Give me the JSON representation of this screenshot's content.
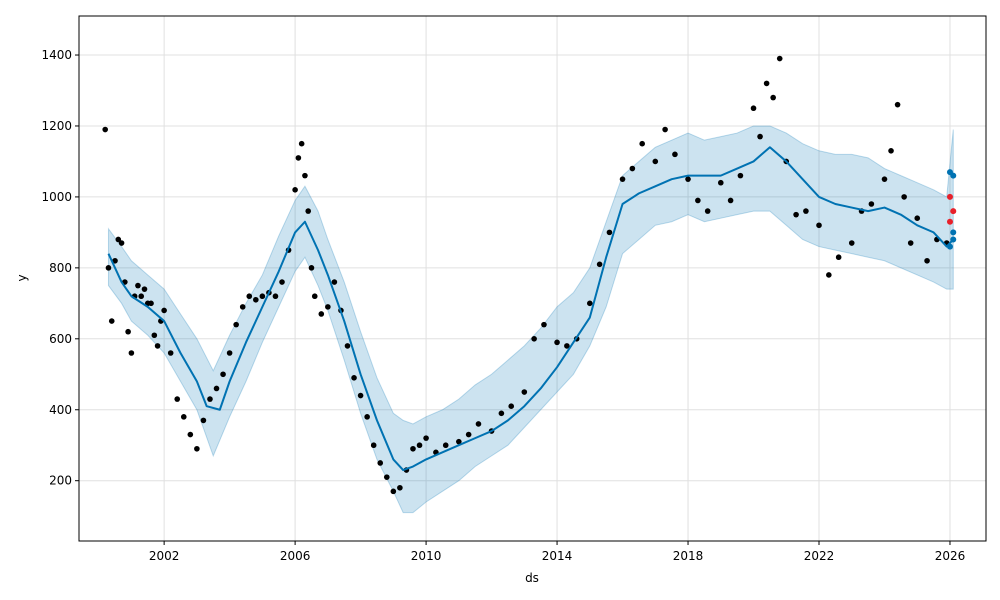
{
  "chart_data": {
    "type": "scatter",
    "title": "",
    "xlabel": "ds",
    "ylabel": "y",
    "xlim": [
      1999.4,
      2027.1
    ],
    "ylim": [
      30,
      1510
    ],
    "x_ticks": [
      2002,
      2006,
      2010,
      2014,
      2018,
      2022,
      2026
    ],
    "x_tick_labels": [
      "2002",
      "2006",
      "2010",
      "2014",
      "2018",
      "2022",
      "2026"
    ],
    "y_ticks": [
      200,
      400,
      600,
      800,
      1000,
      1200,
      1400
    ],
    "y_tick_labels": [
      "200",
      "400",
      "600",
      "800",
      "1000",
      "1200",
      "1400"
    ],
    "grid": true,
    "colors": {
      "observed": "#000000",
      "forecast": "#0072B2",
      "uncertainty": "#0072B2",
      "highlight": "#e8202a"
    },
    "series": [
      {
        "type": "band",
        "x": [
          2000.3,
          2000.7,
          2001.0,
          2001.5,
          2002.0,
          2002.5,
          2003.0,
          2003.5,
          2004.0,
          2004.5,
          2005.0,
          2005.5,
          2006.0,
          2006.3,
          2006.7,
          2007.0,
          2007.5,
          2008.0,
          2008.5,
          2009.0,
          2009.3,
          2009.6,
          2010.0,
          2010.5,
          2011.0,
          2011.5,
          2012.0,
          2012.5,
          2013.0,
          2013.5,
          2014.0,
          2014.5,
          2015.0,
          2015.5,
          2016.0,
          2016.5,
          2017.0,
          2017.5,
          2018.0,
          2018.5,
          2019.0,
          2019.5,
          2020.0,
          2020.5,
          2021.0,
          2021.5,
          2022.0,
          2022.5,
          2023.0,
          2023.5,
          2024.0,
          2024.5,
          2025.0,
          2025.5,
          2025.9,
          2026.1
        ],
        "upper": [
          910,
          860,
          820,
          780,
          740,
          670,
          600,
          510,
          610,
          700,
          780,
          890,
          990,
          1030,
          960,
          880,
          760,
          620,
          490,
          390,
          370,
          360,
          380,
          400,
          430,
          470,
          500,
          540,
          580,
          630,
          690,
          730,
          800,
          930,
          1060,
          1100,
          1140,
          1160,
          1180,
          1160,
          1170,
          1180,
          1200,
          1200,
          1180,
          1150,
          1130,
          1120,
          1120,
          1110,
          1080,
          1060,
          1040,
          1020,
          1000,
          1190
        ],
        "lower": [
          750,
          700,
          650,
          610,
          560,
          480,
          400,
          270,
          380,
          480,
          590,
          690,
          790,
          830,
          750,
          680,
          540,
          390,
          260,
          170,
          110,
          110,
          140,
          170,
          200,
          240,
          270,
          300,
          350,
          400,
          450,
          500,
          580,
          690,
          840,
          880,
          920,
          930,
          950,
          930,
          940,
          950,
          960,
          960,
          920,
          880,
          860,
          850,
          840,
          830,
          820,
          800,
          780,
          760,
          740,
          740
        ]
      },
      {
        "type": "line",
        "x": [
          2000.3,
          2000.7,
          2001.0,
          2001.5,
          2002.0,
          2002.5,
          2003.0,
          2003.3,
          2003.7,
          2004.0,
          2004.5,
          2005.0,
          2005.5,
          2006.0,
          2006.3,
          2006.7,
          2007.0,
          2007.5,
          2008.0,
          2008.5,
          2009.0,
          2009.3,
          2009.6,
          2010.0,
          2010.5,
          2011.0,
          2011.5,
          2012.0,
          2012.5,
          2013.0,
          2013.5,
          2014.0,
          2014.5,
          2015.0,
          2015.5,
          2016.0,
          2016.5,
          2017.0,
          2017.5,
          2018.0,
          2018.5,
          2019.0,
          2019.5,
          2020.0,
          2020.5,
          2021.0,
          2021.5,
          2022.0,
          2022.5,
          2023.0,
          2023.5,
          2024.0,
          2024.5,
          2025.0,
          2025.5,
          2025.9,
          2026.1
        ],
        "y": [
          840,
          760,
          720,
          690,
          650,
          560,
          480,
          410,
          400,
          480,
          590,
          690,
          790,
          900,
          930,
          850,
          780,
          650,
          500,
          370,
          260,
          230,
          240,
          260,
          280,
          300,
          320,
          340,
          370,
          410,
          460,
          520,
          590,
          660,
          830,
          980,
          1010,
          1030,
          1050,
          1060,
          1060,
          1060,
          1080,
          1100,
          1140,
          1100,
          1050,
          1000,
          980,
          970,
          960,
          970,
          950,
          920,
          900,
          860,
          880
        ]
      },
      {
        "type": "observed",
        "x": [
          2000.2,
          2000.3,
          2000.4,
          2000.5,
          2000.6,
          2000.7,
          2000.8,
          2000.9,
          2001.0,
          2001.1,
          2001.2,
          2001.3,
          2001.4,
          2001.5,
          2001.6,
          2001.7,
          2001.8,
          2001.9,
          2002.0,
          2002.2,
          2002.4,
          2002.6,
          2002.8,
          2003.0,
          2003.2,
          2003.4,
          2003.6,
          2003.8,
          2004.0,
          2004.2,
          2004.4,
          2004.6,
          2004.8,
          2005.0,
          2005.2,
          2005.4,
          2005.6,
          2005.8,
          2006.0,
          2006.1,
          2006.2,
          2006.3,
          2006.4,
          2006.5,
          2006.6,
          2006.8,
          2007.0,
          2007.2,
          2007.4,
          2007.6,
          2007.8,
          2008.0,
          2008.2,
          2008.4,
          2008.6,
          2008.8,
          2009.0,
          2009.2,
          2009.4,
          2009.6,
          2009.8,
          2010.0,
          2010.3,
          2010.6,
          2011.0,
          2011.3,
          2011.6,
          2012.0,
          2012.3,
          2012.6,
          2013.0,
          2013.3,
          2013.6,
          2014.0,
          2014.3,
          2014.6,
          2015.0,
          2015.3,
          2015.6,
          2016.0,
          2016.3,
          2016.6,
          2017.0,
          2017.3,
          2017.6,
          2018.0,
          2018.3,
          2018.6,
          2019.0,
          2019.3,
          2019.6,
          2020.0,
          2020.2,
          2020.4,
          2020.6,
          2020.8,
          2021.0,
          2021.3,
          2021.6,
          2022.0,
          2022.3,
          2022.6,
          2023.0,
          2023.3,
          2023.6,
          2024.0,
          2024.2,
          2024.4,
          2024.6,
          2024.8,
          2025.0,
          2025.3,
          2025.6,
          2025.9
        ],
        "y": [
          1190,
          800,
          650,
          820,
          880,
          870,
          760,
          620,
          560,
          720,
          750,
          720,
          740,
          700,
          700,
          610,
          580,
          650,
          680,
          560,
          430,
          380,
          330,
          290,
          370,
          430,
          460,
          500,
          560,
          640,
          690,
          720,
          710,
          720,
          730,
          720,
          760,
          850,
          1020,
          1110,
          1150,
          1060,
          960,
          800,
          720,
          670,
          690,
          760,
          680,
          580,
          490,
          440,
          380,
          300,
          250,
          210,
          170,
          180,
          230,
          290,
          300,
          320,
          280,
          300,
          310,
          330,
          360,
          340,
          390,
          410,
          450,
          600,
          640,
          590,
          580,
          600,
          700,
          810,
          900,
          1050,
          1080,
          1150,
          1100,
          1190,
          1120,
          1050,
          990,
          960,
          1040,
          990,
          1060,
          1250,
          1170,
          1320,
          1280,
          1390,
          1100,
          950,
          960,
          920,
          780,
          830,
          870,
          960,
          980,
          1050,
          1130,
          1260,
          1000,
          870,
          940,
          820,
          880,
          870
        ]
      },
      {
        "type": "forecast",
        "x": [
          2026.0,
          2026.0,
          2026.1,
          2026.1,
          2026.1
        ],
        "y": [
          860,
          1070,
          900,
          1060,
          880
        ]
      },
      {
        "type": "highlight",
        "x": [
          2026.0,
          2026.0,
          2026.1
        ],
        "y": [
          930,
          1000,
          960
        ]
      }
    ]
  }
}
